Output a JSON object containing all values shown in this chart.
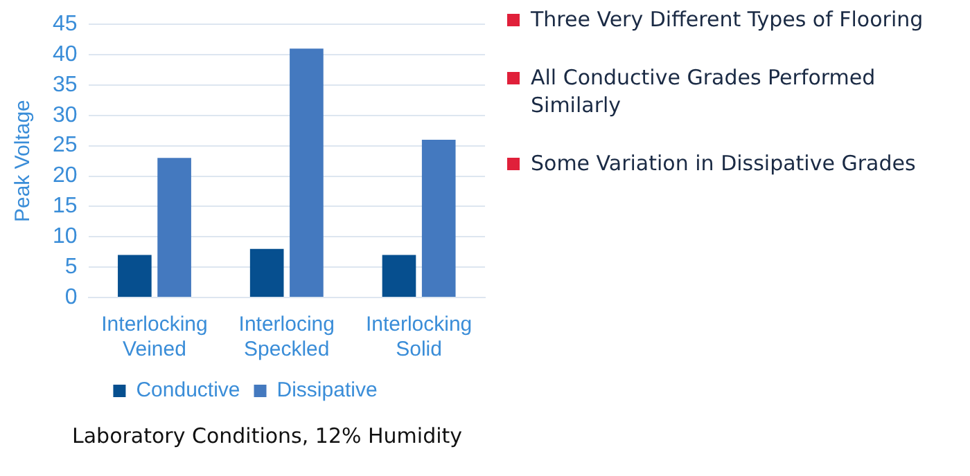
{
  "chart_data": {
    "type": "bar",
    "ylabel": "Peak Voltage",
    "categories": [
      "Interlocking Veined",
      "Interlocing Speckled",
      "Interlocking Solid"
    ],
    "series": [
      {
        "name": "Conductive",
        "color": "#064f8f",
        "values": [
          7,
          8,
          7
        ]
      },
      {
        "name": "Dissipative",
        "color": "#4479bf",
        "values": [
          23,
          41,
          26
        ]
      }
    ],
    "ylim": [
      0,
      45
    ],
    "yticks": [
      0,
      5,
      10,
      15,
      20,
      25,
      30,
      35,
      40,
      45
    ],
    "grid": "y",
    "legend": "bottom",
    "annotations": [
      "Three Very Different Types of Flooring",
      "All Conductive Grades Performed Similarly",
      "Some Variation in Dissipative Grades",
      "Laboratory Conditions, 12% Humidity"
    ]
  }
}
